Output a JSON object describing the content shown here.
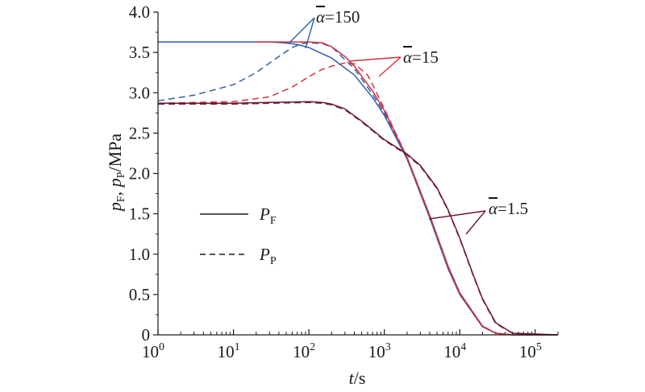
{
  "chart_data": {
    "type": "line",
    "x_scale": "log",
    "xlim": [
      1,
      200000
    ],
    "ylim": [
      0,
      4.0
    ],
    "xlabel": {
      "italic": "t",
      "rest": "/s"
    },
    "ylabel": {
      "p1": "p",
      "s1": "F",
      "sep": ", ",
      "p2": "p",
      "s2": "P",
      "unit": "/MPa"
    },
    "x_ticks": [
      {
        "value": 1,
        "base": "10",
        "exp": "0"
      },
      {
        "value": 10,
        "base": "10",
        "exp": "1"
      },
      {
        "value": 100,
        "base": "10",
        "exp": "2"
      },
      {
        "value": 1000,
        "base": "10",
        "exp": "3"
      },
      {
        "value": 10000,
        "base": "10",
        "exp": "4"
      },
      {
        "value": 100000,
        "base": "10",
        "exp": "5"
      }
    ],
    "y_ticks": [
      "0",
      "0.5",
      "1.0",
      "1.5",
      "2.0",
      "2.5",
      "3.0",
      "3.5",
      "4.0"
    ],
    "legend": [
      {
        "symbol": "P",
        "sub": "F",
        "dash": "solid"
      },
      {
        "symbol": "P",
        "sub": "P",
        "dash": "dashed"
      }
    ],
    "annotations": [
      {
        "symbol": "α",
        "value": "=150",
        "color": "#2f5fa8"
      },
      {
        "symbol": "α",
        "value": "=15",
        "color": "#d62e3c"
      },
      {
        "symbol": "α",
        "value": "=1.5",
        "color": "#6b1a38"
      }
    ],
    "series": [
      {
        "group": "=150",
        "var": "P_F",
        "color": "#2f5fa8",
        "dash": "solid",
        "x": [
          1,
          10,
          30,
          45,
          70,
          100,
          200,
          400,
          700,
          1000,
          2000,
          4000,
          7000,
          10000,
          20000,
          30000,
          50000,
          200000
        ],
        "y": [
          3.63,
          3.63,
          3.63,
          3.62,
          3.6,
          3.56,
          3.43,
          3.22,
          2.94,
          2.72,
          2.18,
          1.45,
          0.82,
          0.5,
          0.1,
          0.02,
          0.0,
          0.0
        ]
      },
      {
        "group": "=150",
        "var": "P_P",
        "color": "#2f5fa8",
        "dash": "dashed",
        "x": [
          1,
          3,
          10,
          20,
          40,
          60,
          80,
          100,
          150,
          200,
          400,
          700,
          1000,
          2000,
          4000,
          7000,
          10000,
          20000,
          30000,
          50000,
          200000
        ],
        "y": [
          2.9,
          2.97,
          3.1,
          3.25,
          3.45,
          3.56,
          3.61,
          3.62,
          3.61,
          3.57,
          3.3,
          2.98,
          2.75,
          2.18,
          1.45,
          0.82,
          0.5,
          0.1,
          0.02,
          0.0,
          0.0
        ]
      },
      {
        "group": "=15",
        "var": "P_F",
        "color": "#d62e3c",
        "dash": "solid",
        "x": [
          20,
          50,
          100,
          150,
          200,
          300,
          400,
          700,
          1000,
          2000,
          4000,
          7000,
          10000,
          20000,
          30000,
          50000,
          200000
        ],
        "y": [
          3.63,
          3.63,
          3.63,
          3.62,
          3.57,
          3.45,
          3.33,
          3.02,
          2.78,
          2.2,
          1.48,
          0.85,
          0.52,
          0.11,
          0.02,
          0.0,
          0.0
        ]
      },
      {
        "group": "=15",
        "var": "P_P",
        "color": "#d62e3c",
        "dash": "dashed",
        "x": [
          1,
          10,
          30,
          60,
          100,
          150,
          200,
          300,
          400,
          600,
          700,
          1000,
          2000,
          4000,
          7000,
          10000,
          20000,
          30000,
          50000,
          200000
        ],
        "y": [
          2.87,
          2.89,
          2.95,
          3.07,
          3.2,
          3.29,
          3.33,
          3.37,
          3.36,
          3.22,
          3.1,
          2.8,
          2.2,
          1.48,
          0.85,
          0.52,
          0.11,
          0.02,
          0.0,
          0.0
        ]
      },
      {
        "group": "=1.5",
        "var": "P_F",
        "color": "#6b1a38",
        "dash": "solid",
        "x": [
          1,
          10,
          30,
          100,
          150,
          200,
          300,
          500,
          1000,
          2000,
          3000,
          5000,
          7000,
          10000,
          15000,
          20000,
          30000,
          50000,
          200000
        ],
        "y": [
          2.87,
          2.87,
          2.88,
          2.89,
          2.88,
          2.86,
          2.8,
          2.65,
          2.42,
          2.24,
          2.1,
          1.82,
          1.55,
          1.2,
          0.75,
          0.45,
          0.15,
          0.02,
          0.0
        ]
      },
      {
        "group": "=1.5",
        "var": "P_P",
        "color": "#6b1a38",
        "dash": "dashed",
        "x": [
          1,
          10,
          30,
          100,
          150,
          200,
          300,
          500,
          1000,
          2000,
          3000,
          5000,
          7000,
          10000,
          15000,
          20000,
          30000,
          50000,
          200000
        ],
        "y": [
          2.86,
          2.86,
          2.87,
          2.88,
          2.87,
          2.85,
          2.79,
          2.64,
          2.41,
          2.23,
          2.09,
          1.81,
          1.54,
          1.19,
          0.74,
          0.44,
          0.14,
          0.02,
          0.0
        ]
      }
    ]
  }
}
